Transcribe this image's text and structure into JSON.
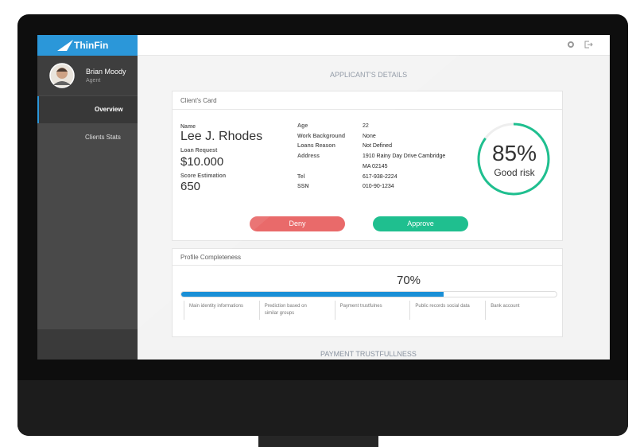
{
  "brand": "ThinFin",
  "user": {
    "name": "Brian Moody",
    "role": "Agent"
  },
  "nav": [
    "Overview",
    "Clients  Stats"
  ],
  "page_title": "APPLICANT'S DETAILS",
  "client_card": {
    "title": "Client's Card",
    "name_label": "Name",
    "name": "Lee J. Rhodes",
    "loan_label": "Loan Request",
    "loan": "$10.000",
    "score_label": "Score Estimation",
    "score": "650",
    "details": [
      {
        "label": "Age",
        "value": [
          "22"
        ]
      },
      {
        "label": "Work Background",
        "value": [
          "None"
        ]
      },
      {
        "label": "Loans Reason",
        "value": [
          "Not Defined"
        ]
      },
      {
        "label": "Address",
        "value": [
          "1910 Rainy Day Drive Cambridge",
          "MA 02145"
        ]
      },
      {
        "label": "Tel",
        "value": [
          "617-938-2224"
        ]
      },
      {
        "label": "SSN",
        "value": [
          "010-90-1234"
        ]
      }
    ],
    "risk": {
      "value": 85,
      "label": "85%",
      "text": "Good risk"
    },
    "buttons": [
      "Deny",
      "Approve"
    ]
  },
  "profile": {
    "title": "Profile Completeness",
    "value": 70,
    "label": "70%",
    "steps": [
      "Main identity informations",
      "Prediction based on similar groups",
      "Payment trustfulnes",
      "Public records social data",
      "Bank account"
    ]
  },
  "next_section": "PAYMENT TRUSTFULLNESS"
}
